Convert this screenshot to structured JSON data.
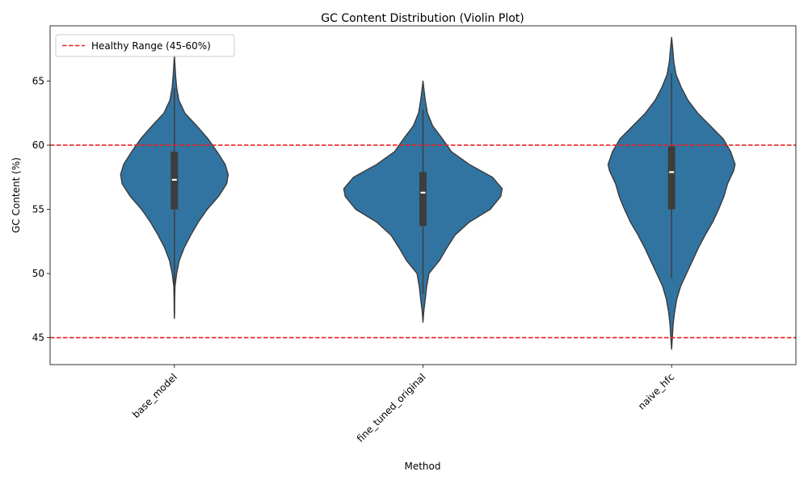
{
  "chart_data": {
    "type": "violin",
    "title": "GC Content Distribution (Violin Plot)",
    "xlabel": "Method",
    "ylabel": "GC Content (%)",
    "ylim": [
      42.9,
      69.3
    ],
    "yticks": [
      45,
      50,
      55,
      60,
      65
    ],
    "grid": false,
    "legend_position": "top-left",
    "colors": {
      "violin": "#3274a1",
      "violin_edge": "#3a3a3a",
      "box": "#3d3d3d",
      "median": "#ffffff",
      "reference": "#e8201e"
    },
    "reference_lines": [
      {
        "name": "Healthy Range (45-60%)",
        "values": [
          45,
          60
        ]
      }
    ],
    "categories": [
      "base_model",
      "fine_tuned_original",
      "naive_hfc"
    ],
    "series": [
      {
        "category": "base_model",
        "kde_min": 46.5,
        "kde_max": 67.0,
        "whisker_low": 48.9,
        "q1": 55.0,
        "median": 57.3,
        "q3": 59.5,
        "whisker_high": 64.5,
        "profile": [
          [
            46.5,
            0.0
          ],
          [
            47.0,
            0.3
          ],
          [
            48.0,
            0.4
          ],
          [
            49.0,
            0.8
          ],
          [
            50.0,
            3.0
          ],
          [
            51.0,
            6.5
          ],
          [
            52.0,
            13
          ],
          [
            53.0,
            22
          ],
          [
            54.0,
            32
          ],
          [
            55.0,
            44
          ],
          [
            56.0,
            59
          ],
          [
            57.0,
            70
          ],
          [
            57.7,
            72
          ],
          [
            58.5,
            68
          ],
          [
            59.5,
            57
          ],
          [
            60.5,
            45
          ],
          [
            61.5,
            30
          ],
          [
            62.5,
            14
          ],
          [
            63.5,
            6
          ],
          [
            64.5,
            3
          ],
          [
            65.5,
            1.5
          ],
          [
            66.5,
            0.5
          ],
          [
            67.0,
            0.0
          ]
        ]
      },
      {
        "category": "fine_tuned_original",
        "kde_min": 46.2,
        "kde_max": 65.0,
        "whisker_low": 48.4,
        "q1": 53.7,
        "median": 56.3,
        "q3": 57.9,
        "whisker_high": 62.8,
        "profile": [
          [
            46.2,
            0.0
          ],
          [
            47.0,
            1.0
          ],
          [
            48.0,
            3.0
          ],
          [
            49.0,
            5.0
          ],
          [
            50.0,
            8.0
          ],
          [
            51.0,
            22
          ],
          [
            52.0,
            32
          ],
          [
            53.0,
            43
          ],
          [
            54.0,
            62
          ],
          [
            55.0,
            90
          ],
          [
            56.0,
            104
          ],
          [
            56.6,
            106
          ],
          [
            57.5,
            93
          ],
          [
            58.5,
            62
          ],
          [
            59.5,
            38
          ],
          [
            60.5,
            26
          ],
          [
            61.5,
            13
          ],
          [
            62.5,
            6
          ],
          [
            63.5,
            3
          ],
          [
            64.5,
            1
          ],
          [
            65.0,
            0.0
          ]
        ]
      },
      {
        "category": "naive_hfc",
        "kde_min": 44.1,
        "kde_max": 68.4,
        "whisker_low": 49.6,
        "q1": 55.0,
        "median": 57.9,
        "q3": 59.9,
        "whisker_high": 65.6,
        "profile": [
          [
            44.1,
            0.0
          ],
          [
            45.0,
            1.0
          ],
          [
            46.0,
            2.0
          ],
          [
            47.0,
            4.0
          ],
          [
            48.0,
            7.0
          ],
          [
            49.0,
            12
          ],
          [
            50.0,
            20
          ],
          [
            51.0,
            28
          ],
          [
            52.0,
            36
          ],
          [
            53.0,
            45
          ],
          [
            54.0,
            55
          ],
          [
            55.0,
            63
          ],
          [
            56.0,
            70
          ],
          [
            57.0,
            75
          ],
          [
            58.0,
            83
          ],
          [
            58.5,
            85
          ],
          [
            59.5,
            79
          ],
          [
            60.5,
            69
          ],
          [
            61.5,
            52
          ],
          [
            62.5,
            35
          ],
          [
            63.5,
            22
          ],
          [
            64.5,
            13
          ],
          [
            65.5,
            6
          ],
          [
            66.5,
            3
          ],
          [
            67.5,
            1.5
          ],
          [
            68.4,
            0.0
          ]
        ]
      }
    ]
  }
}
